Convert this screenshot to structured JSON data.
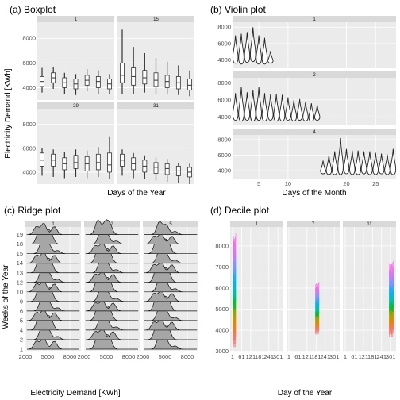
{
  "chart_data": [
    {
      "type": "boxplot",
      "title": "(a) Boxplot",
      "xlabel": "Days of the Year",
      "ylabel": "Electricity Demand [KWh]",
      "ylim": [
        3000,
        9300
      ],
      "yticks": [
        4000,
        6000,
        8000
      ],
      "panels": [
        {
          "label": "1",
          "boxes": [
            {
              "x": 1,
              "q1": 4100,
              "med": 4500,
              "q3": 4900,
              "lo": 3600,
              "hi": 5600
            },
            {
              "x": 2,
              "q1": 4400,
              "med": 4800,
              "q3": 5200,
              "lo": 3900,
              "hi": 5700
            },
            {
              "x": 3,
              "q1": 4000,
              "med": 4400,
              "q3": 4800,
              "lo": 3500,
              "hi": 5200
            },
            {
              "x": 4,
              "q1": 3900,
              "med": 4300,
              "q3": 4700,
              "lo": 3400,
              "hi": 5100
            },
            {
              "x": 5,
              "q1": 4200,
              "med": 4600,
              "q3": 5000,
              "lo": 3700,
              "hi": 5500
            },
            {
              "x": 6,
              "q1": 4000,
              "med": 4500,
              "q3": 4900,
              "lo": 3500,
              "hi": 5400
            },
            {
              "x": 7,
              "q1": 3900,
              "med": 4300,
              "q3": 4700,
              "lo": 3500,
              "hi": 5100
            }
          ]
        },
        {
          "label": "15",
          "boxes": [
            {
              "x": 1,
              "q1": 4400,
              "med": 5000,
              "q3": 6000,
              "lo": 3500,
              "hi": 8700
            },
            {
              "x": 2,
              "q1": 4200,
              "med": 4900,
              "q3": 5600,
              "lo": 3500,
              "hi": 7300
            },
            {
              "x": 3,
              "q1": 4300,
              "med": 4800,
              "q3": 5400,
              "lo": 3600,
              "hi": 6800
            },
            {
              "x": 4,
              "q1": 4100,
              "med": 4600,
              "q3": 5200,
              "lo": 3500,
              "hi": 6400
            },
            {
              "x": 5,
              "q1": 4000,
              "med": 4500,
              "q3": 5000,
              "lo": 3500,
              "hi": 6100
            },
            {
              "x": 6,
              "q1": 3900,
              "med": 4400,
              "q3": 4900,
              "lo": 3400,
              "hi": 5800
            },
            {
              "x": 7,
              "q1": 3800,
              "med": 4200,
              "q3": 4700,
              "lo": 3300,
              "hi": 5400
            }
          ]
        },
        {
          "label": "29",
          "boxes": [
            {
              "x": 1,
              "q1": 4500,
              "med": 5000,
              "q3": 5600,
              "lo": 3700,
              "hi": 6000
            },
            {
              "x": 2,
              "q1": 4500,
              "med": 5000,
              "q3": 5500,
              "lo": 3600,
              "hi": 5900
            },
            {
              "x": 3,
              "q1": 4200,
              "med": 4700,
              "q3": 5200,
              "lo": 3500,
              "hi": 5700
            },
            {
              "x": 4,
              "q1": 4300,
              "med": 4800,
              "q3": 5400,
              "lo": 3600,
              "hi": 5900
            },
            {
              "x": 5,
              "q1": 4100,
              "med": 4700,
              "q3": 5300,
              "lo": 3500,
              "hi": 5800
            },
            {
              "x": 6,
              "q1": 4200,
              "med": 4800,
              "q3": 5500,
              "lo": 3600,
              "hi": 6100
            },
            {
              "x": 7,
              "q1": 4000,
              "med": 4600,
              "q3": 5600,
              "lo": 3400,
              "hi": 7000
            }
          ]
        },
        {
          "label": "31",
          "boxes": [
            {
              "x": 1,
              "q1": 4500,
              "med": 5000,
              "q3": 5500,
              "lo": 3700,
              "hi": 5900
            },
            {
              "x": 2,
              "q1": 4200,
              "med": 4700,
              "q3": 5200,
              "lo": 3500,
              "hi": 5600
            },
            {
              "x": 3,
              "q1": 4000,
              "med": 4500,
              "q3": 5000,
              "lo": 3400,
              "hi": 5400
            },
            {
              "x": 4,
              "q1": 3900,
              "med": 4400,
              "q3": 4800,
              "lo": 3300,
              "hi": 5200
            },
            {
              "x": 5,
              "q1": 3800,
              "med": 4300,
              "q3": 4700,
              "lo": 3200,
              "hi": 5100
            },
            {
              "x": 6,
              "q1": 3700,
              "med": 4100,
              "q3": 4500,
              "lo": 3100,
              "hi": 4800
            },
            {
              "x": 7,
              "q1": 3600,
              "med": 4000,
              "q3": 4400,
              "lo": 3000,
              "hi": 4700
            }
          ]
        }
      ]
    },
    {
      "type": "violin",
      "title": "(b) Violin plot",
      "xlabel": "Days of the Month",
      "ylabel": "",
      "xlim": [
        0.5,
        28.5
      ],
      "xticks": [
        5,
        10,
        20,
        25
      ],
      "ylim": [
        3000,
        8600
      ],
      "yticks": [
        4000,
        6000,
        8000
      ],
      "panels": [
        {
          "label": "1",
          "days": [
            1,
            2,
            3,
            4,
            5,
            6,
            7
          ],
          "hi": [
            7000,
            7200,
            7400,
            8000,
            7000,
            6700,
            5100
          ],
          "lo": [
            3600,
            3500,
            3700,
            3800,
            3500,
            3500,
            3600
          ]
        },
        {
          "label": "2",
          "days": [
            1,
            2,
            3,
            4,
            5,
            6,
            7,
            8,
            9,
            10,
            11,
            12,
            13,
            14,
            15
          ],
          "hi": [
            6800,
            7500,
            6900,
            7200,
            7500,
            6800,
            6700,
            6700,
            6600,
            6300,
            6000,
            6100,
            5800,
            5600,
            5400
          ],
          "lo": [
            3600,
            3500,
            3600,
            3500,
            3600,
            3500,
            3600,
            3500,
            3500,
            3600,
            3500,
            3600,
            3500,
            3500,
            3600
          ]
        },
        {
          "label": "4",
          "days": [
            16,
            17,
            18,
            19,
            20,
            21,
            22,
            23,
            24,
            25,
            26,
            27,
            28
          ],
          "hi": [
            5300,
            6000,
            6500,
            8200,
            6800,
            6600,
            6600,
            6500,
            6500,
            6300,
            6200,
            6100,
            6800
          ],
          "lo": [
            3600,
            3500,
            3500,
            3500,
            3600,
            3500,
            3500,
            3600,
            3500,
            3500,
            3600,
            3500,
            3500
          ]
        }
      ]
    },
    {
      "type": "ridgeline",
      "title": "(c) Ridge plot",
      "xlabel": "Electricity Demand [KWh]",
      "ylabel": "Weeks of the Year",
      "xlim": [
        2000,
        9500
      ],
      "xticks": [
        2000,
        5000,
        8000
      ],
      "panels": [
        {
          "label": "1",
          "weeks": [
            19,
            18,
            15,
            14,
            13,
            12,
            10,
            9,
            6,
            5,
            4,
            2,
            1
          ]
        },
        {
          "label": "2",
          "weeks": [
            19,
            18,
            15,
            14,
            13,
            12,
            10,
            9,
            6,
            5,
            4,
            2,
            1
          ]
        },
        {
          "label": "5",
          "weeks": [
            19,
            18,
            15,
            14,
            13,
            12,
            10,
            9,
            6,
            5,
            4,
            2,
            1
          ]
        }
      ]
    },
    {
      "type": "decile",
      "title": "(d) Decile plot",
      "xlabel": "Day of the Year",
      "ylabel": "",
      "ylim": [
        2950,
        8900
      ],
      "yticks": [
        3000,
        4000,
        5000,
        6000,
        7000,
        8000
      ],
      "xtick_labels": [
        "1",
        "61",
        "121",
        "181",
        "241",
        "301"
      ],
      "panels": [
        {
          "label": "1",
          "bands": [
            {
              "x0": 1,
              "x1": 22,
              "lo": 3200,
              "hi": 8600
            }
          ]
        },
        {
          "label": "7",
          "bands": [
            {
              "x0": 175,
              "x1": 200,
              "lo": 3800,
              "hi": 6300
            }
          ]
        },
        {
          "label": "11",
          "bands": [
            {
              "x0": 290,
              "x1": 320,
              "lo": 3700,
              "hi": 7300
            }
          ]
        }
      ]
    }
  ]
}
